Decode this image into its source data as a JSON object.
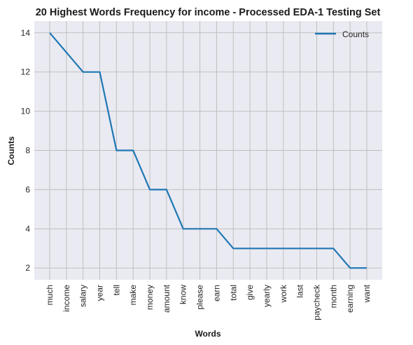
{
  "chart_data": {
    "type": "line",
    "title": "20 Highest Words Frequency for income - Processed EDA-1 Testing Set",
    "xlabel": "Words",
    "ylabel": "Counts",
    "categories": [
      "much",
      "income",
      "salary",
      "year",
      "tell",
      "make",
      "money",
      "amount",
      "know",
      "please",
      "earn",
      "total",
      "give",
      "yearly",
      "work",
      "last",
      "paycheck",
      "month",
      "earning",
      "want"
    ],
    "series": [
      {
        "name": "Counts",
        "values": [
          14,
          13,
          12,
          12,
          8,
          8,
          6,
          6,
          4,
          4,
          4,
          3,
          3,
          3,
          3,
          3,
          3,
          3,
          2,
          2
        ]
      }
    ],
    "ylim": [
      1.4,
      14.6
    ],
    "yticks": [
      2,
      4,
      6,
      8,
      10,
      12,
      14
    ],
    "grid": true,
    "legend": "top-right",
    "colors": {
      "line": "#1f77b4",
      "background": "#eaeaf2",
      "grid": "#bfbfbf"
    }
  }
}
